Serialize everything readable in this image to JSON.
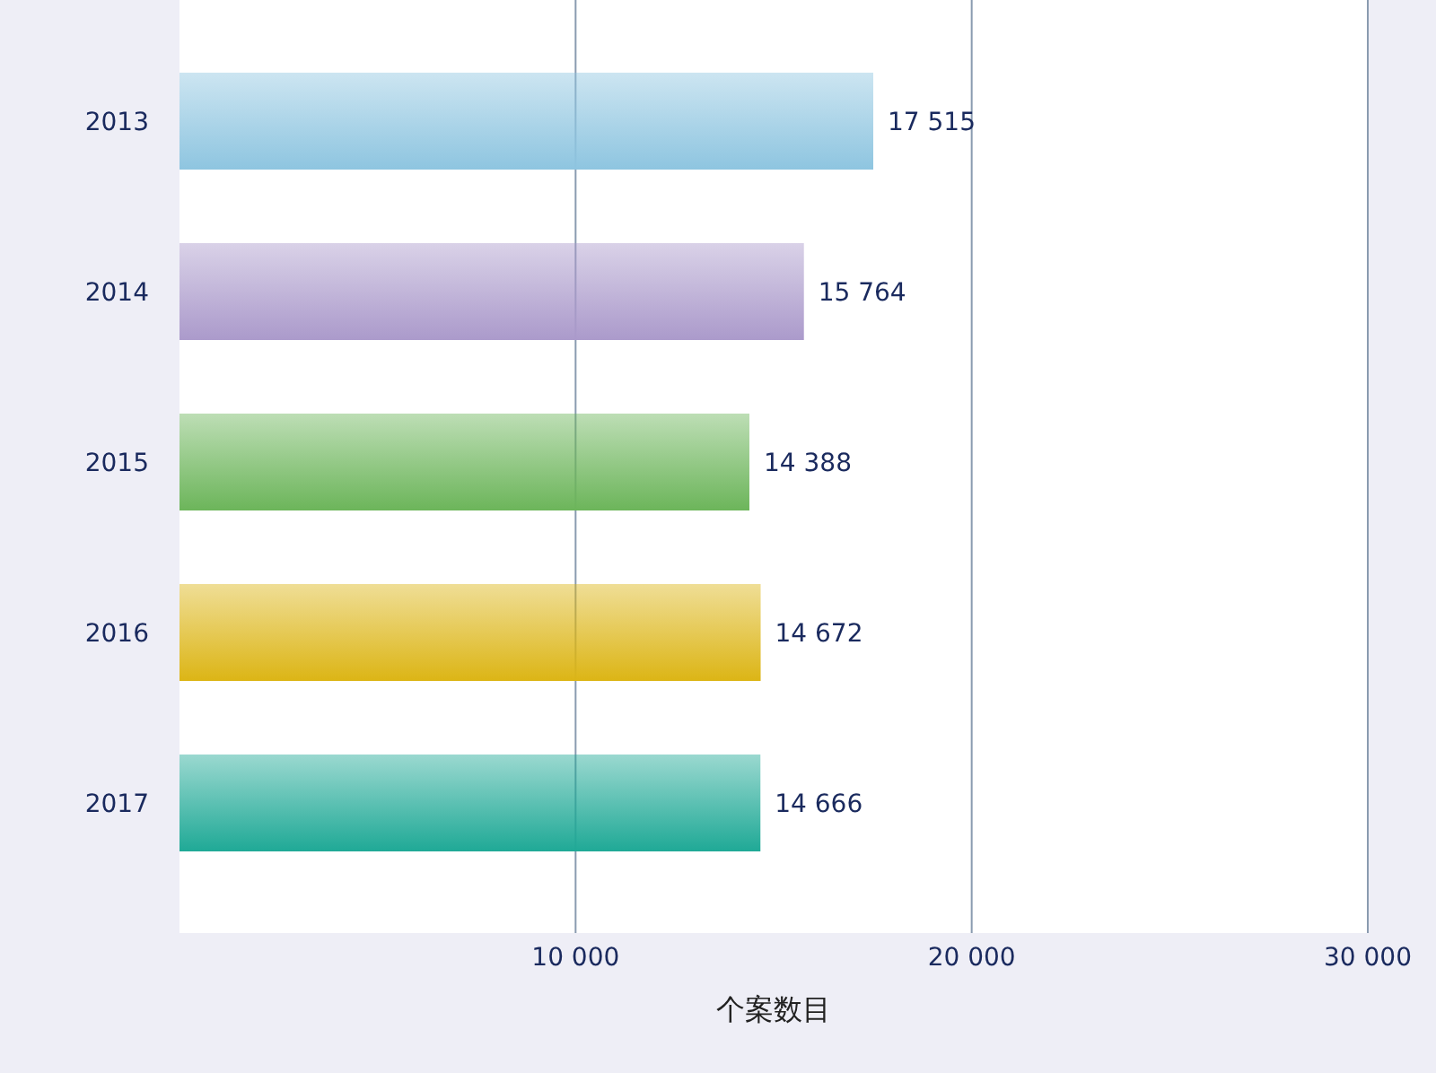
{
  "chart_data": {
    "type": "bar",
    "orientation": "horizontal",
    "xlabel": "个案数目",
    "categories": [
      "2013",
      "2014",
      "2015",
      "2016",
      "2017"
    ],
    "values": [
      17515,
      15764,
      14388,
      14672,
      14666
    ],
    "colors": [
      "#8ec5e0",
      "#ab9acb",
      "#6cb55a",
      "#dcb515",
      "#1fa996"
    ],
    "value_labels": [
      "17 515",
      "15 764",
      "14 388",
      "14 672",
      "14 666"
    ],
    "xlim": [
      0,
      30000
    ],
    "xticks": [
      {
        "value": 10000,
        "label": "10 000"
      },
      {
        "value": 20000,
        "label": "20 000"
      },
      {
        "value": 30000,
        "label": "30 000"
      }
    ],
    "grid": "x"
  }
}
